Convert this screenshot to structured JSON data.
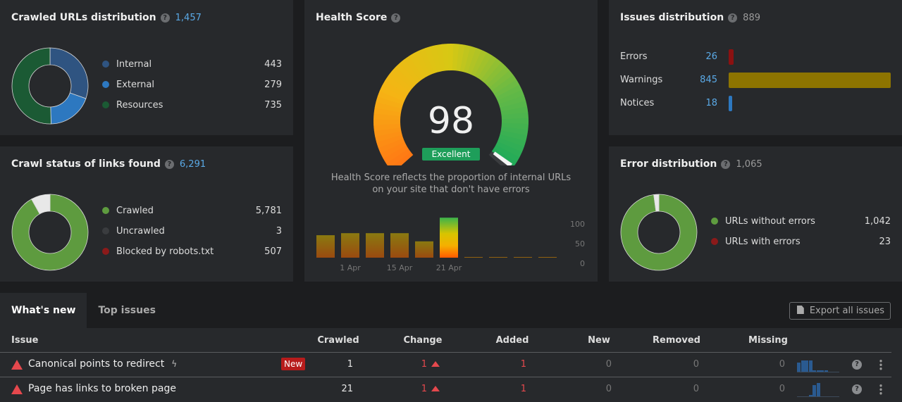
{
  "crawled_urls": {
    "title": "Crawled URLs distribution",
    "total": "1,457",
    "items": [
      {
        "label": "Internal",
        "value": 443,
        "display": "443",
        "color": "#2f5481"
      },
      {
        "label": "External",
        "value": 279,
        "display": "279",
        "color": "#2d78c0"
      },
      {
        "label": "Resources",
        "value": 735,
        "display": "735",
        "color": "#1b5a34"
      }
    ]
  },
  "crawl_status": {
    "title": "Crawl status of links found",
    "total": "6,291",
    "items": [
      {
        "label": "Crawled",
        "value": 5781,
        "display": "5,781",
        "color": "#5e9b3f"
      },
      {
        "label": "Uncrawled",
        "value": 3,
        "display": "3",
        "color": "#3a3c3f"
      },
      {
        "label": "Blocked by robots.txt",
        "value": 507,
        "display": "507",
        "color": "#8b1a1a",
        "ring_color": "#e8e8e8"
      }
    ]
  },
  "health": {
    "title": "Health Score",
    "score": "98",
    "score_value": 98,
    "rating": "Excellent",
    "rating_color": "#1e9e5a",
    "description": "Health Score reflects the proportion of internal URLs on your site that don't have errors"
  },
  "chart_data": {
    "type": "bar",
    "categories": [
      "",
      "1 Apr",
      "",
      "15 Apr",
      "",
      "21 Apr",
      "",
      "",
      "",
      ""
    ],
    "values": [
      55,
      60,
      60,
      60,
      40,
      98,
      0,
      0,
      0,
      0
    ],
    "ylim": [
      0,
      100
    ],
    "yticks": [
      "100",
      "50",
      "0"
    ],
    "xticks": [
      "1 Apr",
      "15 Apr",
      "21 Apr"
    ],
    "grid": false
  },
  "issues": {
    "title": "Issues distribution",
    "total": "889",
    "items": [
      {
        "label": "Errors",
        "display": "26",
        "value": 26,
        "color": "#8b1111"
      },
      {
        "label": "Warnings",
        "display": "845",
        "value": 845,
        "color": "#8d7400"
      },
      {
        "label": "Notices",
        "display": "18",
        "value": 18,
        "color": "#2d78c0"
      }
    ]
  },
  "errors": {
    "title": "Error distribution",
    "total": "1,065",
    "items": [
      {
        "label": "URLs without errors",
        "value": 1042,
        "display": "1,042",
        "color": "#5e9b3f"
      },
      {
        "label": "URLs with errors",
        "value": 23,
        "display": "23",
        "color": "#8b1a1a",
        "ring_color": "#e8e8e8"
      }
    ]
  },
  "tabs": [
    {
      "label": "What's new"
    },
    {
      "label": "Top issues"
    }
  ],
  "export_label": "Export all issues",
  "table": {
    "columns": [
      "Issue",
      "Crawled",
      "Change",
      "Added",
      "New",
      "Removed",
      "Missing"
    ],
    "rows": [
      {
        "issue": "Canonical points to redirect",
        "badge": "New",
        "crawled": "1",
        "change": "1",
        "added": "1",
        "new": "0",
        "removed": "0",
        "missing": "0",
        "trend": [
          8,
          10,
          10,
          10,
          1,
          1,
          1,
          1
        ]
      },
      {
        "issue": "Page has links to broken page",
        "crawled": "21",
        "change": "1",
        "added": "1",
        "new": "0",
        "removed": "0",
        "missing": "0",
        "trend": [
          0,
          0,
          0,
          1,
          10,
          12,
          0,
          0
        ]
      }
    ]
  }
}
